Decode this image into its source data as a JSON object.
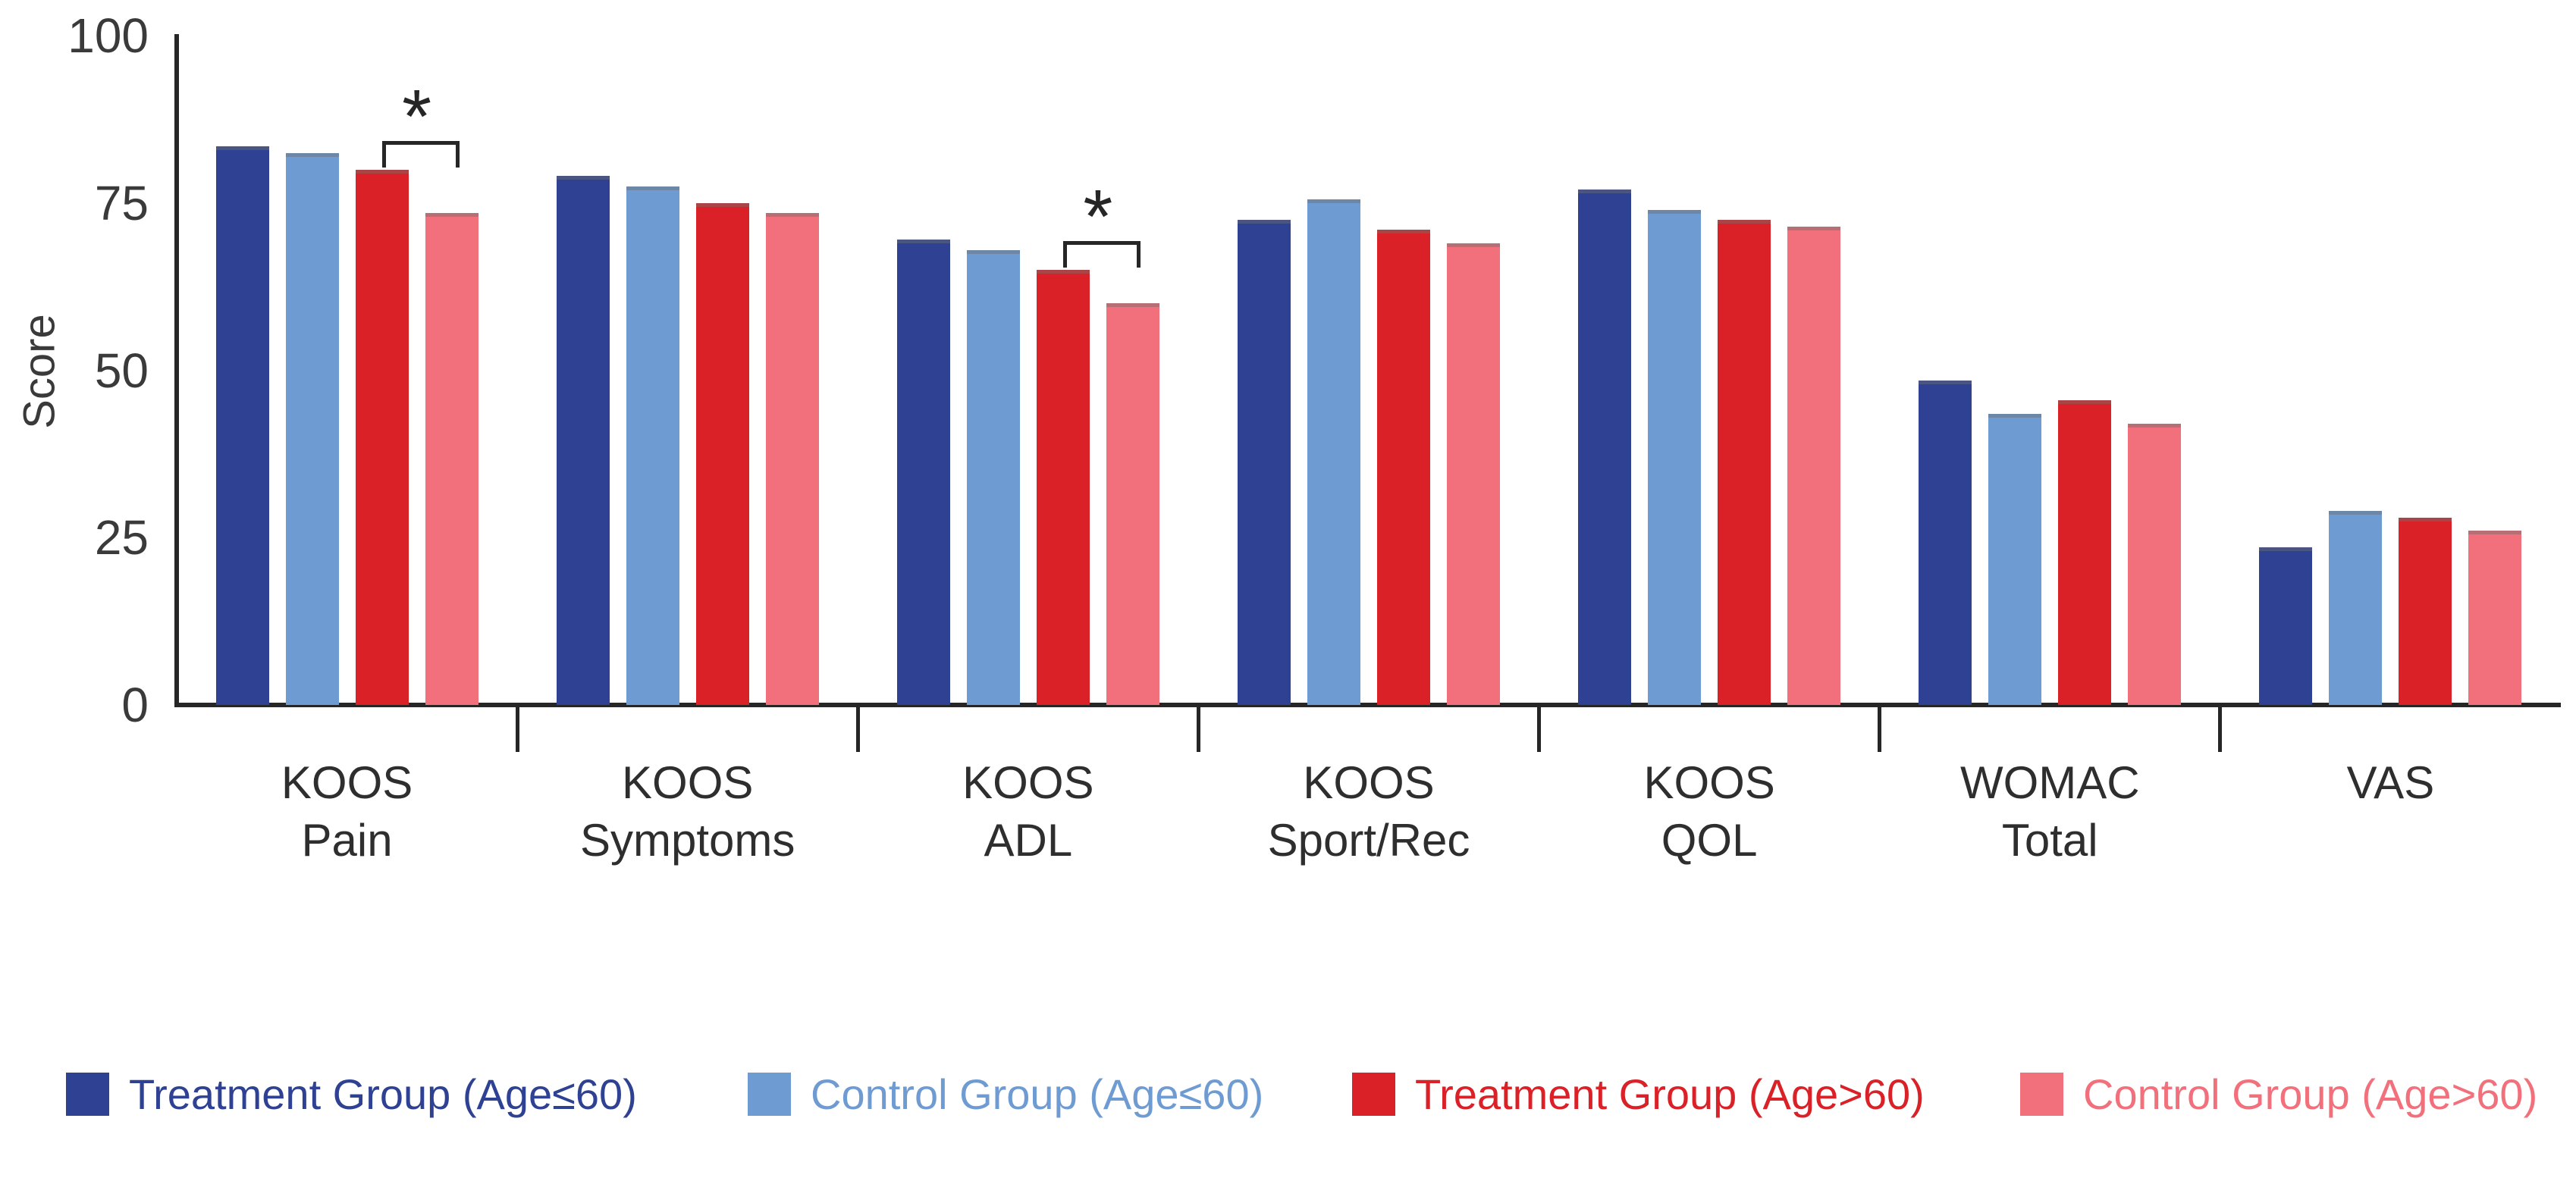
{
  "chart_data": {
    "type": "bar",
    "title": "",
    "ylabel": "Score",
    "xlabel": "",
    "ylim": [
      0,
      100
    ],
    "yticks": [
      0,
      25,
      50,
      75,
      100
    ],
    "grid": false,
    "legend_position": "bottom",
    "categories": [
      [
        "KOOS",
        "Pain"
      ],
      [
        "KOOS",
        "Symptoms"
      ],
      [
        "KOOS",
        "ADL"
      ],
      [
        "KOOS",
        "Sport/Rec"
      ],
      [
        "KOOS",
        "QOL"
      ],
      [
        "WOMAC",
        "Total"
      ],
      [
        "VAS"
      ]
    ],
    "series": [
      {
        "name": "Treatment Group (Age≤60)",
        "color": "#2E4192",
        "values": [
          83.5,
          79,
          69.5,
          72.5,
          77,
          48.5,
          23.5
        ]
      },
      {
        "name": "Control Group (Age≤60)",
        "color": "#6F9BD3",
        "values": [
          82.5,
          77.5,
          68,
          75.5,
          74,
          43.5,
          29
        ]
      },
      {
        "name": "Treatment Group (Age>60)",
        "color": "#D92127",
        "values": [
          80,
          75,
          65,
          71,
          72.5,
          45.5,
          28
        ]
      },
      {
        "name": "Control Group (Age>60)",
        "color": "#F2707C",
        "values": [
          73.5,
          73.5,
          60,
          69,
          71.5,
          42,
          26
        ]
      }
    ],
    "annotations": [
      {
        "category_index": 0,
        "from_series": 2,
        "to_series": 3,
        "symbol": "*"
      },
      {
        "category_index": 2,
        "from_series": 2,
        "to_series": 3,
        "symbol": "*"
      }
    ]
  },
  "colors": {
    "axis": "#262626",
    "tick_text": "#3A3A3A",
    "background": "#FFFFFF"
  }
}
